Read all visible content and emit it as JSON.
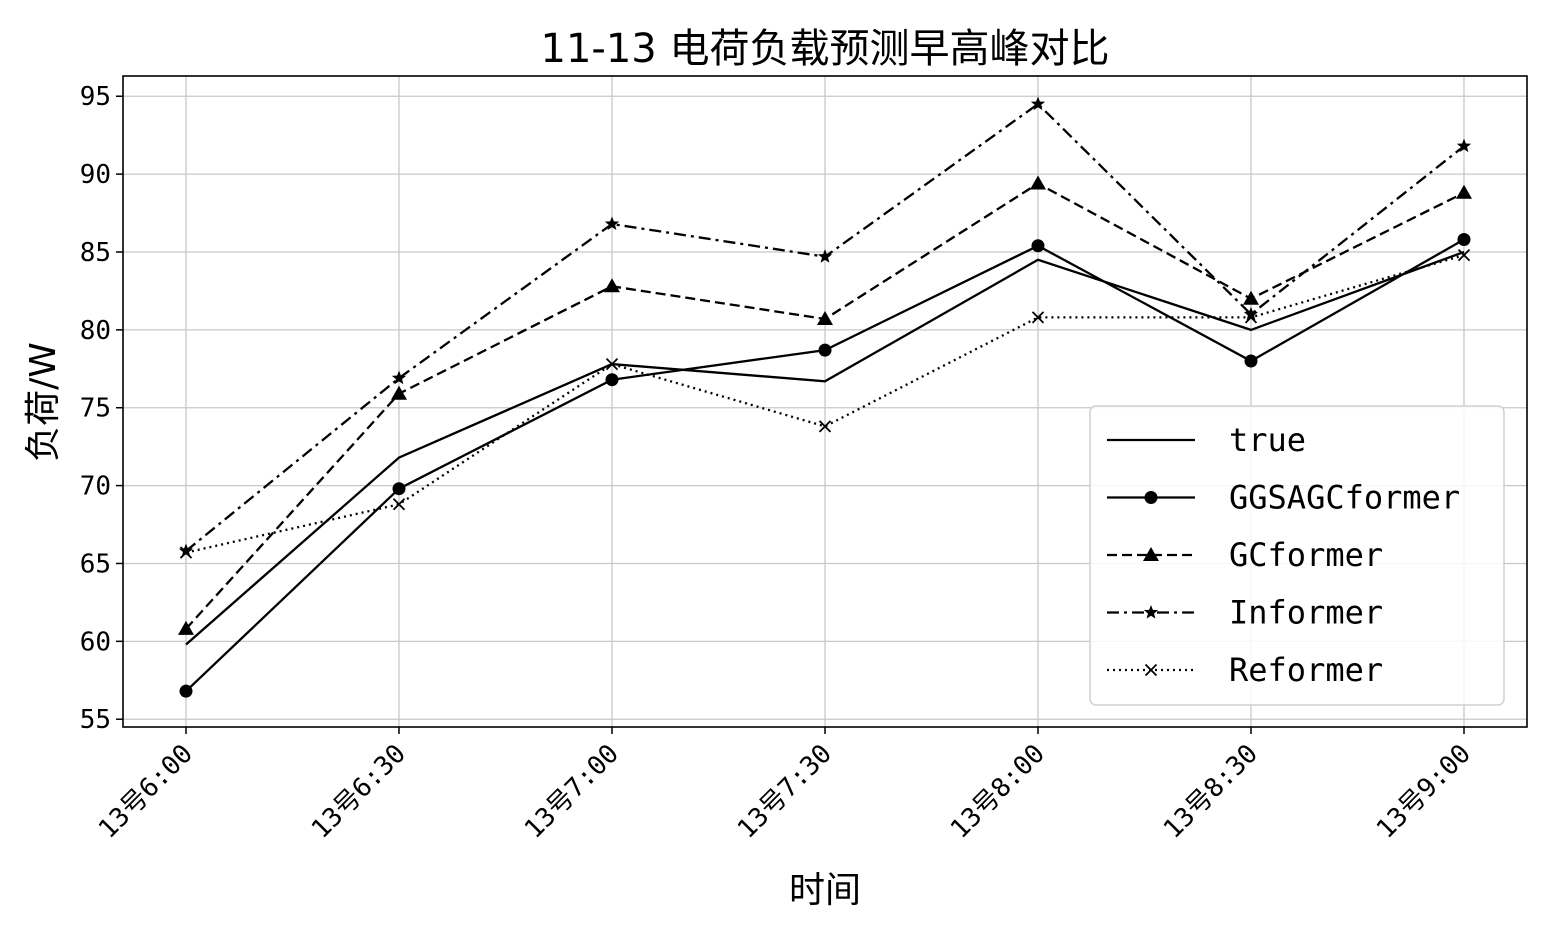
{
  "chart_data": {
    "type": "line",
    "title": "11-13 电荷负载预测早高峰对比",
    "xlabel": "时间",
    "ylabel": "负荷/W",
    "categories": [
      "13号6:00",
      "13号6:30",
      "13号7:00",
      "13号7:30",
      "13号8:00",
      "13号8:30",
      "13号9:00"
    ],
    "ylim": [
      54.5,
      96.3
    ],
    "yticks": [
      55,
      60,
      65,
      70,
      75,
      80,
      85,
      90,
      95
    ],
    "grid": true,
    "legend_position": "lower-right",
    "series": [
      {
        "name": "true",
        "values": [
          59.8,
          71.8,
          77.8,
          76.7,
          84.5,
          80.0,
          85.0
        ],
        "dash": "solid",
        "marker": "none"
      },
      {
        "name": "GGSAGCformer",
        "values": [
          56.8,
          69.8,
          76.8,
          78.7,
          85.4,
          78.0,
          85.8
        ],
        "dash": "solid",
        "marker": "circle"
      },
      {
        "name": "GCformer",
        "values": [
          60.8,
          75.9,
          82.8,
          80.7,
          89.4,
          82.0,
          88.8
        ],
        "dash": "dashed",
        "marker": "triangle"
      },
      {
        "name": "Informer",
        "values": [
          65.8,
          76.9,
          86.8,
          84.7,
          94.5,
          81.0,
          91.8
        ],
        "dash": "dashdot",
        "marker": "star"
      },
      {
        "name": "Reformer",
        "values": [
          65.7,
          68.8,
          77.8,
          73.8,
          80.8,
          80.8,
          84.8
        ],
        "dash": "dotted",
        "marker": "x"
      }
    ],
    "colors": {
      "line": "#000000",
      "grid": "#c8c8c8",
      "legend_border": "#d0d0d0"
    }
  }
}
